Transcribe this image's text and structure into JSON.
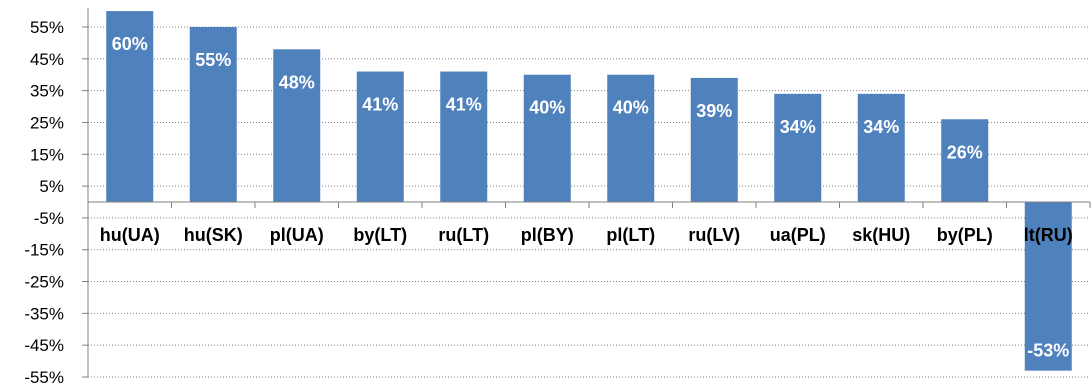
{
  "chart_data": {
    "type": "bar",
    "categories": [
      "hu(UA)",
      "hu(SK)",
      "pl(UA)",
      "by(LT)",
      "ru(LT)",
      "pl(BY)",
      "pl(LT)",
      "ru(LV)",
      "ua(PL)",
      "sk(HU)",
      "by(PL)",
      "lt(RU)"
    ],
    "values": [
      60,
      55,
      48,
      41,
      41,
      40,
      40,
      39,
      34,
      34,
      26,
      -53
    ],
    "data_labels": [
      "60%",
      "55%",
      "48%",
      "41%",
      "41%",
      "40%",
      "40%",
      "39%",
      "34%",
      "34%",
      "26%",
      "-53%"
    ],
    "title": "",
    "xlabel": "",
    "ylabel": "",
    "ylim": [
      -55,
      60
    ],
    "y_ticks": [
      55,
      45,
      35,
      25,
      15,
      5,
      -5,
      -15,
      -25,
      -35,
      -45,
      -55
    ],
    "y_tick_labels": [
      "55%",
      "45%",
      "35%",
      "25%",
      "15%",
      "5%",
      "-5%",
      "-15%",
      "-25%",
      "-35%",
      "-45%",
      "-55%"
    ],
    "grid": true,
    "legend": "none",
    "bar_color": "#4F81BD",
    "grid_color": "#808080"
  }
}
